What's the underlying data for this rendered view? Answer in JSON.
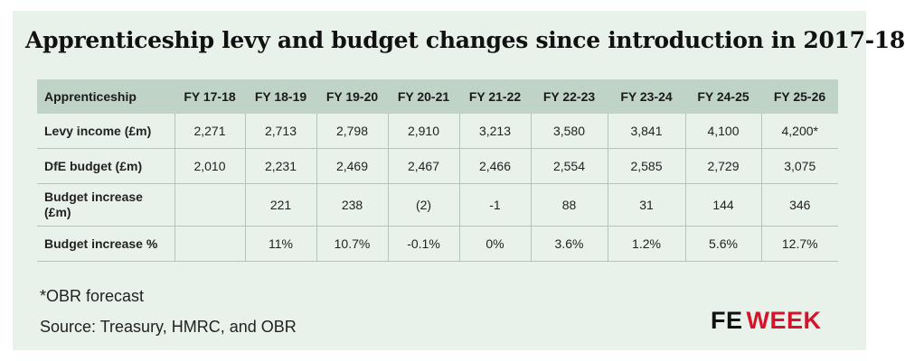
{
  "title": "Apprenticeship levy and budget changes since introduction in 2017-18",
  "chart_data": {
    "type": "table",
    "title": "Apprenticeship levy and budget changes since introduction in 2017-18",
    "columns": [
      "Apprenticeship",
      "FY 17-18",
      "FY 18-19",
      "FY 19-20",
      "FY 20-21",
      "FY 21-22",
      "FY 22-23",
      "FY 23-24",
      "FY 24-25",
      "FY 25-26"
    ],
    "rows": [
      {
        "label": "Levy income (£m)",
        "values": [
          "2,271",
          "2,713",
          "2,798",
          "2,910",
          "3,213",
          "3,580",
          "3,841",
          "4,100",
          "4,200*"
        ]
      },
      {
        "label": "DfE budget (£m)",
        "values": [
          "2,010",
          "2,231",
          "2,469",
          "2,467",
          "2,466",
          "2,554",
          "2,585",
          "2,729",
          "3,075"
        ]
      },
      {
        "label": "Budget increase (£m)",
        "values": [
          "",
          "221",
          "238",
          "(2)",
          "-1",
          "88",
          "31",
          "144",
          "346"
        ]
      },
      {
        "label": "Budget increase %",
        "values": [
          "",
          "11%",
          "10.7%",
          "-0.1%",
          "0%",
          "3.6%",
          "1.2%",
          "5.6%",
          "12.7%"
        ]
      }
    ]
  },
  "footnote": "*OBR forecast",
  "source": "Source: Treasury, HMRC, and OBR",
  "logo": {
    "fe": "FE",
    "week": "WEEK"
  },
  "colors": {
    "background": "#e8f1ea",
    "header": "#bfd3c6",
    "brand_red": "#d7132a"
  }
}
